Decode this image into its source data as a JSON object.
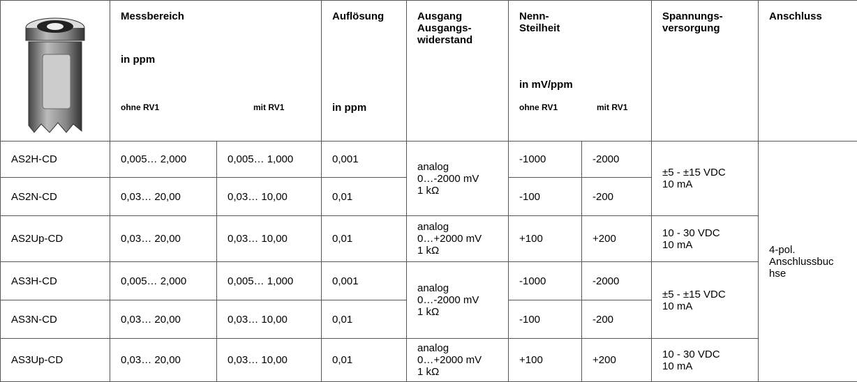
{
  "header": {
    "messbereich": {
      "title": "Messbereich",
      "unit": "in ppm",
      "ohne": "ohne RV1",
      "mit": "mit RV1"
    },
    "aufloesung": {
      "title": "Auflösung",
      "unit": "in ppm"
    },
    "ausgang": {
      "title": "Ausgang\nAusgangs-\nwiderstand"
    },
    "steilheit": {
      "title": "Nenn-\nSteilheit",
      "unit": "in mV/ppm",
      "ohne": "ohne RV1",
      "mit": "mit RV1"
    },
    "versorgung": {
      "title": "Spannungs-\nversorgung"
    },
    "anschluss": {
      "title": "Anschluss"
    }
  },
  "rows": [
    [
      "AS2H-CD",
      "0,005… 2,000",
      "0,005… 1,000",
      "0,001",
      "-1000",
      "-2000"
    ],
    [
      "AS2N-CD",
      "0,03… 20,00",
      "0,03… 10,00",
      "0,01",
      "-100",
      "-200"
    ],
    [
      "AS2Up-CD",
      "0,03… 20,00",
      "0,03… 10,00",
      "0,01",
      "+100",
      "+200"
    ],
    [
      "AS3H-CD",
      "0,005… 2,000",
      "0,005… 1,000",
      "0,001",
      "-1000",
      "-2000"
    ],
    [
      "AS3N-CD",
      "0,03… 20,00",
      "0,03… 10,00",
      "0,01",
      "-100",
      "-200"
    ],
    [
      "AS3Up-CD",
      "0,03… 20,00",
      "0,03… 10,00",
      "0,01",
      "+100",
      "+200"
    ]
  ],
  "ausgang": [
    "analog\n0…-2000 mV\n1 kΩ",
    "analog\n0…+2000 mV\n1 kΩ",
    "analog\n0…-2000 mV\n1 kΩ",
    "analog\n0…+2000 mV\n1 kΩ"
  ],
  "versorgung": [
    "±5 - ±15 VDC\n10 mA",
    "10 - 30 VDC\n10 mA",
    "±5 - ±15 VDC\n10 mA",
    "10 - 30 VDC\n10 mA"
  ],
  "anschluss": "4-pol.\nAnschlussbuc\nhse"
}
